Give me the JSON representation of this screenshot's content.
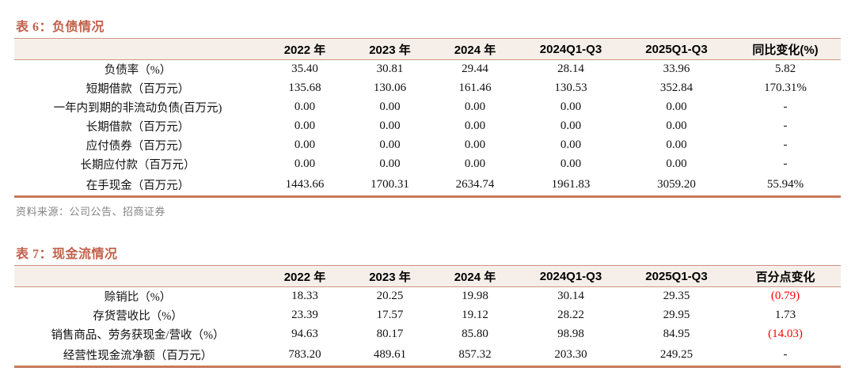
{
  "colors": {
    "title_color": "#c2604c",
    "thin_rule": "#cf9384",
    "thick_rule": "#c9785c",
    "header_bg": "#f6efe9",
    "negative_color": "#ff0000",
    "source_color": "#848484"
  },
  "table6": {
    "title": "表 6：负债情况",
    "columns": [
      "2022 年",
      "2023 年",
      "2024 年",
      "2024Q1-Q3",
      "2025Q1-Q3",
      "同比变化(%)"
    ],
    "rows": [
      {
        "label": "负债率（%）",
        "values": [
          "35.40",
          "30.81",
          "29.44",
          "28.14",
          "33.96",
          "5.82"
        ]
      },
      {
        "label": "短期借款（百万元）",
        "values": [
          "135.68",
          "130.06",
          "161.46",
          "130.53",
          "352.84",
          "170.31%"
        ]
      },
      {
        "label": "一年内到期的非流动负债(百万元)",
        "values": [
          "0.00",
          "0.00",
          "0.00",
          "0.00",
          "0.00",
          "-"
        ]
      },
      {
        "label": "长期借款（百万元）",
        "values": [
          "0.00",
          "0.00",
          "0.00",
          "0.00",
          "0.00",
          "-"
        ]
      },
      {
        "label": "应付债券（百万元）",
        "values": [
          "0.00",
          "0.00",
          "0.00",
          "0.00",
          "0.00",
          "-"
        ]
      },
      {
        "label": "长期应付款（百万元）",
        "values": [
          "0.00",
          "0.00",
          "0.00",
          "0.00",
          "0.00",
          "-"
        ]
      },
      {
        "label": "在手现金（百万元）",
        "values": [
          "1443.66",
          "1700.31",
          "2634.74",
          "1961.83",
          "3059.20",
          "55.94%"
        ]
      }
    ],
    "source": "资料来源：公司公告、招商证券"
  },
  "table7": {
    "title": "表 7：现金流情况",
    "columns": [
      "2022 年",
      "2023 年",
      "2024 年",
      "2024Q1-Q3",
      "2025Q1-Q3",
      "百分点变化"
    ],
    "rows": [
      {
        "label": "赊销比（%）",
        "values": [
          "18.33",
          "20.25",
          "19.98",
          "30.14",
          "29.35",
          "(0.79)"
        ]
      },
      {
        "label": "存货营收比（%）",
        "values": [
          "23.39",
          "17.57",
          "19.12",
          "28.22",
          "29.95",
          "1.73"
        ]
      },
      {
        "label": "销售商品、劳务获现金/营收（%）",
        "values": [
          "94.63",
          "80.17",
          "85.80",
          "98.98",
          "84.95",
          "(14.03)"
        ]
      },
      {
        "label": "经营性现金流净额（百万元）",
        "values": [
          "783.20",
          "489.61",
          "857.32",
          "203.30",
          "249.25",
          "-"
        ]
      }
    ]
  }
}
